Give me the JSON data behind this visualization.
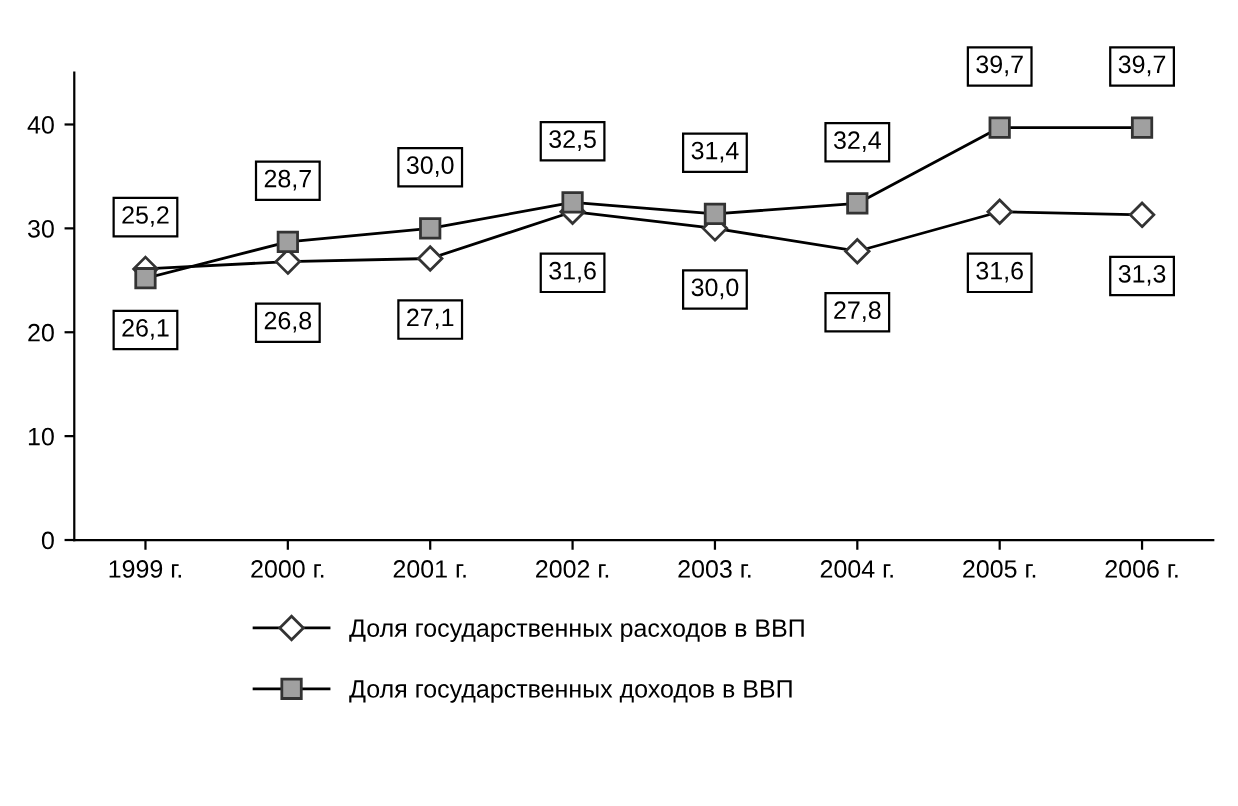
{
  "chart_data": {
    "type": "line",
    "categories": [
      "1999 г.",
      "2000 г.",
      "2001 г.",
      "2002 г.",
      "2003 г.",
      "2004 г.",
      "2005 г.",
      "2006 г."
    ],
    "series": [
      {
        "name": "Доля государственных расходов в ВВП",
        "color": "#000000",
        "marker": "diamond",
        "values": [
          26.1,
          26.8,
          27.1,
          31.6,
          30.0,
          27.8,
          31.6,
          31.3
        ],
        "value_labels": [
          "26,1",
          "26,8",
          "27,1",
          "31,6",
          "30,0",
          "27,8",
          "31,6",
          "31,3"
        ]
      },
      {
        "name": "Доля государственных доходов в ВВП",
        "color": "#000000",
        "marker": "square",
        "values": [
          25.2,
          28.7,
          30.0,
          32.5,
          31.4,
          32.4,
          39.7,
          39.7
        ],
        "value_labels": [
          "25,2",
          "28,7",
          "30,0",
          "32,5",
          "31,4",
          "32,4",
          "39,7",
          "39,7"
        ]
      }
    ],
    "ylim": [
      0,
      45
    ],
    "yticks": [
      0,
      10,
      20,
      30,
      40
    ],
    "grid": false,
    "legend": "bottom"
  }
}
